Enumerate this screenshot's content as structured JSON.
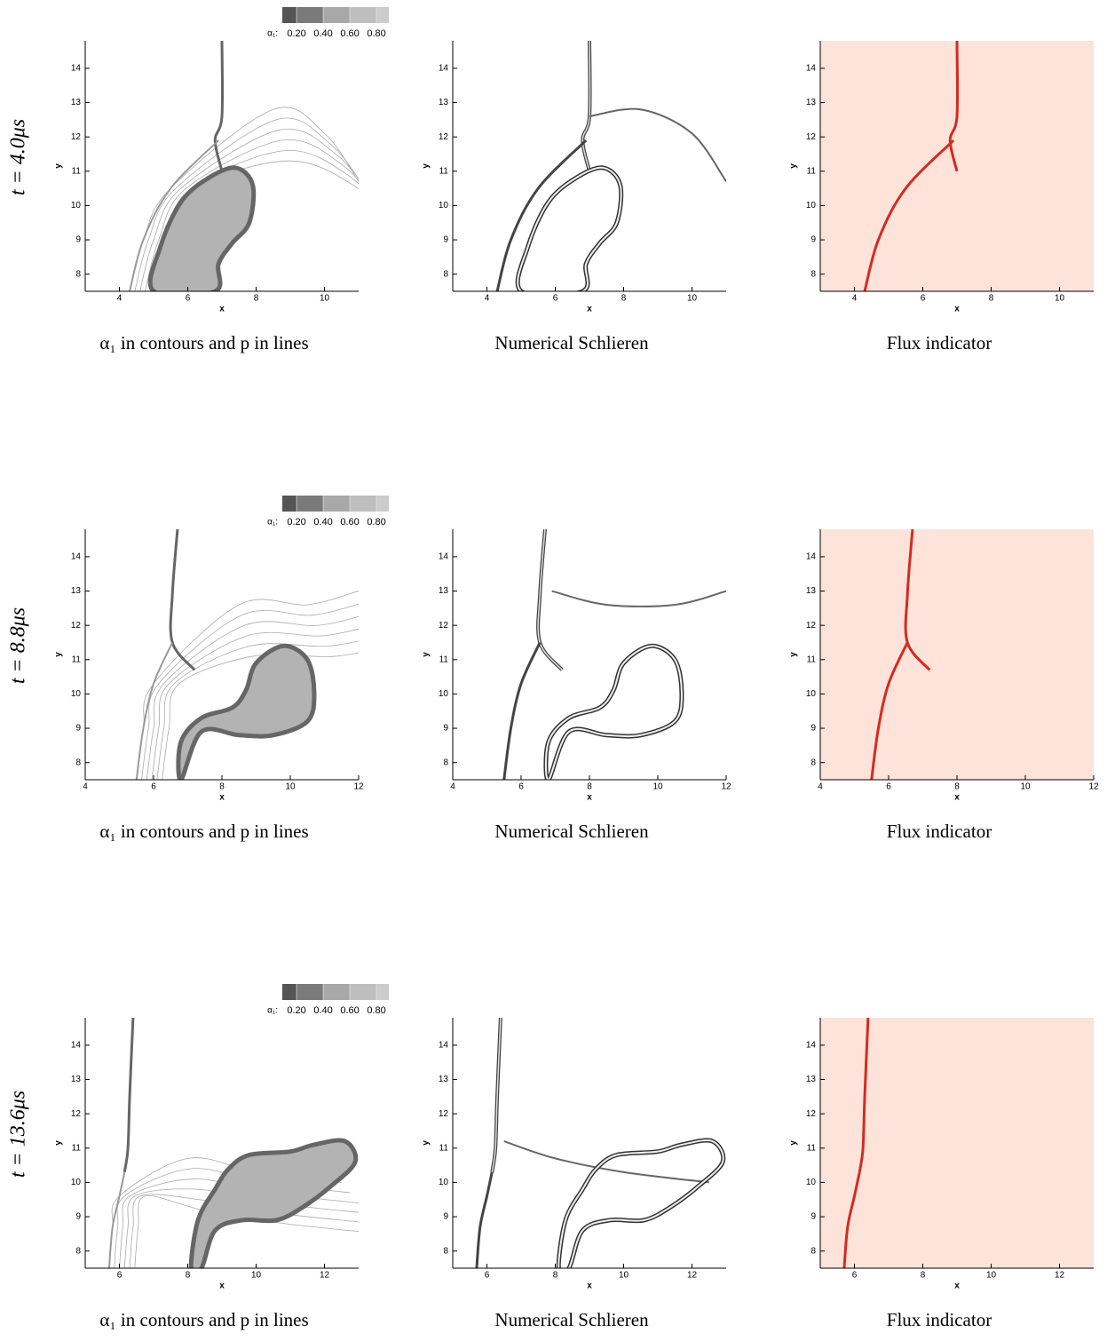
{
  "row_labels": [
    "t = 4.0μs",
    "t = 8.8μs",
    "t = 13.6μs"
  ],
  "colorbar": {
    "label": "α₁:",
    "lim": [
      0.093,
      0.893
    ],
    "ticks": [
      {
        "value": 0.2,
        "label": "0.20"
      },
      {
        "value": 0.4,
        "label": "0.40"
      },
      {
        "value": 0.6,
        "label": "0.60"
      },
      {
        "value": 0.8,
        "label": "0.80"
      }
    ],
    "colors": [
      "#555555",
      "#7a7a7a",
      "#a8a8a8",
      "#bebebe",
      "#cccccc"
    ]
  },
  "chart_data": [
    {
      "type": "contour",
      "caption": "α₁ in contours and p in lines",
      "xlabel": "x",
      "ylabel": "y",
      "xlim": [
        3,
        11
      ],
      "ylim": [
        7.5,
        14.8
      ],
      "xticks": [
        4,
        6,
        8,
        10
      ],
      "yticks": [
        8,
        9,
        10,
        11,
        12,
        13,
        14
      ]
    },
    {
      "type": "schlieren",
      "caption": "Numerical Schlieren",
      "xlabel": "x",
      "ylabel": "y",
      "xlim": [
        3,
        11
      ],
      "ylim": [
        7.5,
        14.8
      ],
      "xticks": [
        4,
        6,
        8,
        10
      ],
      "yticks": [
        8,
        9,
        10,
        11,
        12,
        13,
        14
      ]
    },
    {
      "type": "indicator",
      "caption": "Flux indicator",
      "xlabel": "x",
      "ylabel": "y",
      "xlim": [
        3,
        11
      ],
      "ylim": [
        7.5,
        14.8
      ],
      "xticks": [
        4,
        6,
        8,
        10
      ],
      "yticks": [
        8,
        9,
        10,
        11,
        12,
        13,
        14
      ]
    },
    {
      "type": "contour",
      "caption": "α₁ in contours and p in lines",
      "xlabel": "x",
      "ylabel": "y",
      "xlim": [
        4,
        12
      ],
      "ylim": [
        7.5,
        14.8
      ],
      "xticks": [
        4,
        6,
        8,
        10,
        12
      ],
      "yticks": [
        8,
        9,
        10,
        11,
        12,
        13,
        14
      ]
    },
    {
      "type": "schlieren",
      "caption": "Numerical Schlieren",
      "xlabel": "x",
      "ylabel": "y",
      "xlim": [
        4,
        12
      ],
      "ylim": [
        7.5,
        14.8
      ],
      "xticks": [
        4,
        6,
        8,
        10,
        12
      ],
      "yticks": [
        8,
        9,
        10,
        11,
        12,
        13,
        14
      ]
    },
    {
      "type": "indicator",
      "caption": "Flux indicator",
      "xlabel": "x",
      "ylabel": "y",
      "xlim": [
        4,
        12
      ],
      "ylim": [
        7.5,
        14.8
      ],
      "xticks": [
        4,
        6,
        8,
        10,
        12
      ],
      "yticks": [
        8,
        9,
        10,
        11,
        12,
        13,
        14
      ]
    },
    {
      "type": "contour",
      "caption": "α₁ in contours and p in lines",
      "xlabel": "x",
      "ylabel": "y",
      "xlim": [
        5,
        13
      ],
      "ylim": [
        7.5,
        14.8
      ],
      "xticks": [
        6,
        8,
        10,
        12
      ],
      "yticks": [
        8,
        9,
        10,
        11,
        12,
        13,
        14
      ]
    },
    {
      "type": "schlieren",
      "caption": "Numerical Schlieren",
      "xlabel": "x",
      "ylabel": "y",
      "xlim": [
        5,
        13
      ],
      "ylim": [
        7.5,
        14.8
      ],
      "xticks": [
        6,
        8,
        10,
        12
      ],
      "yticks": [
        8,
        9,
        10,
        11,
        12,
        13,
        14
      ]
    },
    {
      "type": "indicator",
      "caption": "Flux indicator",
      "xlabel": "x",
      "ylabel": "y",
      "xlim": [
        5,
        13
      ],
      "ylim": [
        7.5,
        14.8
      ],
      "xticks": [
        6,
        8,
        10,
        12
      ],
      "yticks": [
        8,
        9,
        10,
        11,
        12,
        13,
        14
      ]
    }
  ]
}
